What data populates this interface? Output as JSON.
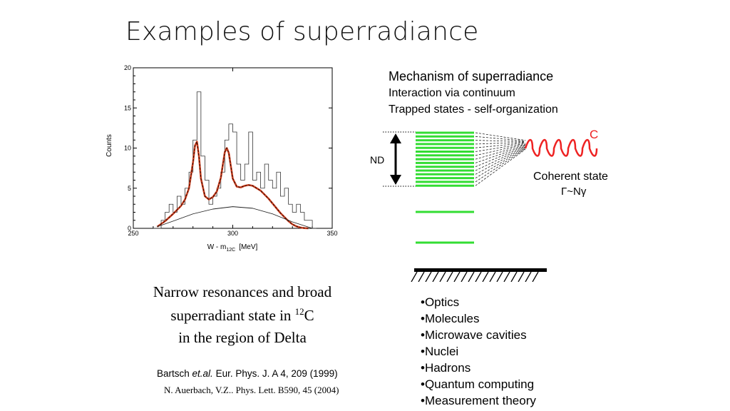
{
  "slide": {
    "title": "Examples of superradiance"
  },
  "chart_data": {
    "type": "line",
    "xlabel": "W - m",
    "xlabel_sub": "12C",
    "xlabel_unit": "[MeV]",
    "ylabel": "Counts",
    "xlim": [
      250,
      350
    ],
    "ylim": [
      0,
      20
    ],
    "xticks": [
      250,
      300,
      350
    ],
    "yticks": [
      0,
      5,
      10,
      15,
      20
    ],
    "series": [
      {
        "kind": "histogram",
        "x": [
          260,
          262,
          264,
          266,
          268,
          270,
          272,
          274,
          276,
          278,
          280,
          282,
          284,
          286,
          288,
          290,
          292,
          294,
          296,
          298,
          300,
          302,
          304,
          306,
          308,
          310,
          312,
          314,
          316,
          318,
          320,
          322,
          324,
          326,
          328,
          330,
          332,
          334,
          336,
          338,
          340
        ],
        "values": [
          0,
          0,
          1,
          2,
          3,
          2,
          4,
          3,
          5,
          7,
          11,
          17,
          9,
          6,
          3,
          4,
          5,
          7,
          11,
          13,
          12,
          8,
          6,
          8,
          12,
          6,
          7,
          5,
          8,
          6,
          5,
          7,
          4,
          5,
          3,
          2,
          3,
          2,
          1,
          1,
          0
        ]
      },
      {
        "kind": "fit-total",
        "color": "#d04020",
        "x": [
          262,
          266,
          270,
          274,
          276,
          278,
          280,
          281,
          282,
          283,
          284,
          286,
          288,
          290,
          292,
          294,
          295,
          296,
          297,
          298,
          299,
          300,
          302,
          304,
          306,
          308,
          310,
          312,
          314,
          316,
          318,
          320,
          322,
          324,
          326,
          328,
          330,
          332,
          334,
          336,
          338
        ],
        "values": [
          0.2,
          0.9,
          1.8,
          2.8,
          3.6,
          5.0,
          8.2,
          10.3,
          10.8,
          9.0,
          6.2,
          4.0,
          3.6,
          3.9,
          4.6,
          6.3,
          7.9,
          9.5,
          10.0,
          9.4,
          7.8,
          6.2,
          5.2,
          5.1,
          5.3,
          5.4,
          5.3,
          5.0,
          4.7,
          4.2,
          3.7,
          3.1,
          2.5,
          1.9,
          1.4,
          0.9,
          0.5,
          0.25,
          0.1,
          0.03,
          0.0
        ]
      },
      {
        "kind": "background",
        "color": "#222222",
        "x": [
          262,
          270,
          280,
          290,
          300,
          310,
          320,
          330,
          340
        ],
        "values": [
          0.2,
          0.9,
          1.8,
          2.4,
          2.7,
          2.5,
          1.8,
          0.8,
          0.0
        ]
      }
    ]
  },
  "mechanism": {
    "heading": "Mechanism of superradiance",
    "line1": "Interaction via continuum",
    "line2": "Trapped states - self-organization"
  },
  "diagram": {
    "nd_label": "ND",
    "c_label": "C",
    "coherent_label": "Coherent state",
    "gamma_label": "Γ~Nγ",
    "level_color": "#33dd33",
    "wave_color": "#ee2222"
  },
  "caption": {
    "line1": "Narrow resonances and broad",
    "line2_pre": "superradiant  state in ",
    "line2_sup": "12",
    "line2_post": "C",
    "line3": "in the region of  Delta"
  },
  "references": {
    "ref1_pre": "Bartsch ",
    "ref1_em": "et.al.",
    "ref1_post": " Eur. Phys. J. A 4, 209 (1999)",
    "ref2": "N. Auerbach, V.Z.. Phys. Lett. B590, 45 (2004)"
  },
  "systems": [
    "Optics",
    "Molecules",
    "Microwave cavities",
    "Nuclei",
    "Hadrons",
    "Quantum computing",
    "Measurement theory"
  ]
}
